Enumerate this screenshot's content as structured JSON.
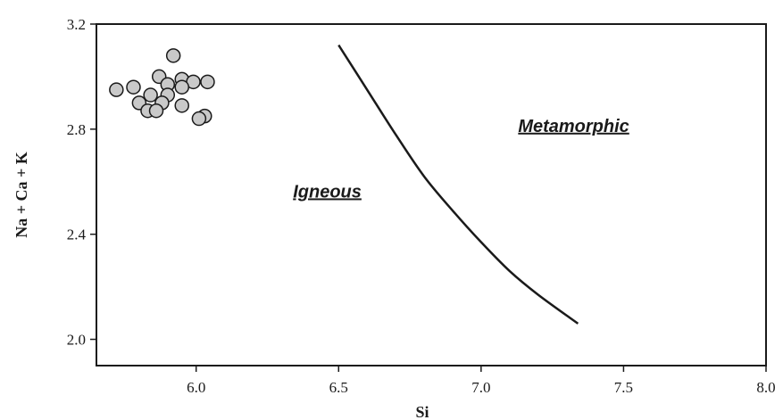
{
  "chart_data": {
    "type": "scatter",
    "title": "",
    "xlabel": "Si",
    "ylabel": "Na + Ca + K",
    "xlim": [
      5.65,
      8.0
    ],
    "ylim": [
      1.9,
      3.2
    ],
    "x_ticks": [
      6.0,
      6.5,
      7.0,
      7.5,
      8.0
    ],
    "x_tick_labels": [
      "6.0",
      "6.5",
      "7.0",
      "7.5",
      "8.0"
    ],
    "y_ticks": [
      2.0,
      2.4,
      2.8,
      3.2
    ],
    "y_tick_labels": [
      "2.0",
      "2.4",
      "2.8",
      "3.2"
    ],
    "grid": false,
    "legend": "none",
    "points": {
      "x": [
        5.92,
        5.72,
        5.78,
        5.87,
        5.95,
        5.9,
        5.99,
        6.04,
        5.84,
        5.9,
        5.95,
        5.8,
        5.83,
        5.88,
        5.86,
        5.95,
        6.03,
        6.01
      ],
      "y": [
        3.08,
        2.95,
        2.96,
        3.0,
        2.99,
        2.97,
        2.98,
        2.98,
        2.93,
        2.93,
        2.96,
        2.9,
        2.87,
        2.9,
        2.87,
        2.89,
        2.85,
        2.84
      ],
      "marker_color": "#c9c9c9",
      "edge_color": "#1a1a1a"
    },
    "boundary_curve": {
      "x": [
        6.5,
        6.6,
        6.7,
        6.8,
        6.9,
        7.0,
        7.1,
        7.2,
        7.34
      ],
      "y": [
        3.12,
        2.95,
        2.78,
        2.62,
        2.49,
        2.37,
        2.26,
        2.17,
        2.06
      ],
      "color": "#1a1a1a"
    },
    "annotations": [
      {
        "text": "Igneous",
        "x": 6.34,
        "y": 2.54
      },
      {
        "text": "Metamorphic",
        "x": 7.13,
        "y": 2.79
      }
    ]
  }
}
